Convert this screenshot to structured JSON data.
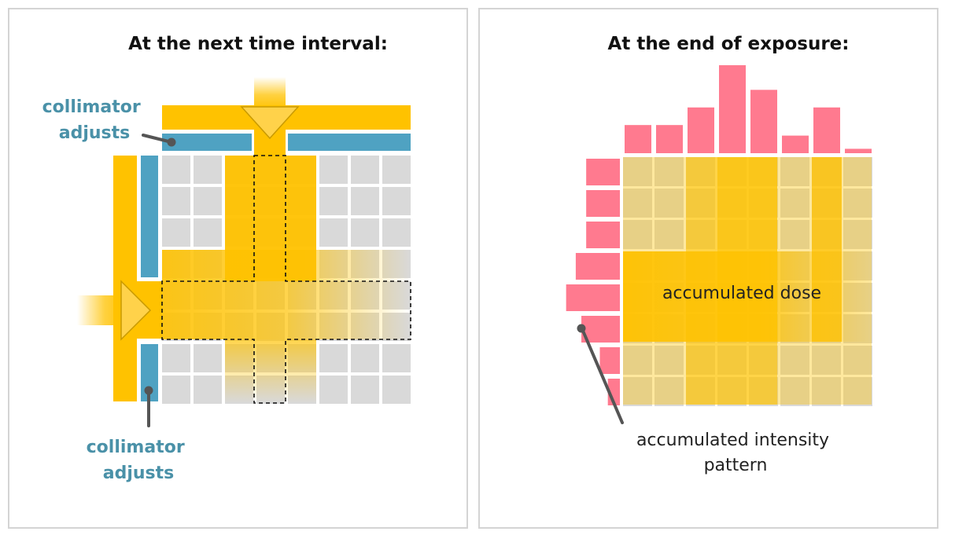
{
  "left_panel": {
    "title": "At the next time interval:",
    "collimator_top_label": [
      "collimator",
      "adjusts"
    ],
    "collimator_bottom_label": [
      "collimator",
      "adjusts"
    ]
  },
  "right_panel": {
    "title": "At the end of exposure:",
    "dose_label": "accumulated dose",
    "intensity_label": [
      "accumulated intensity",
      "pattern"
    ],
    "column_intensity": [
      0.32,
      0.32,
      0.52,
      1.0,
      0.72,
      0.2,
      0.52,
      0.05
    ],
    "row_intensity": [
      0.42,
      0.42,
      0.42,
      0.55,
      0.67,
      0.48,
      0.25,
      0.15
    ]
  },
  "colors": {
    "beam": "#ffc200",
    "collimator": "#4fa2c2",
    "grid_cell": "#d9d9d9",
    "histogram": "#ff7a8f",
    "panel_border": "#d4d4d4",
    "pointer": "#555555"
  }
}
